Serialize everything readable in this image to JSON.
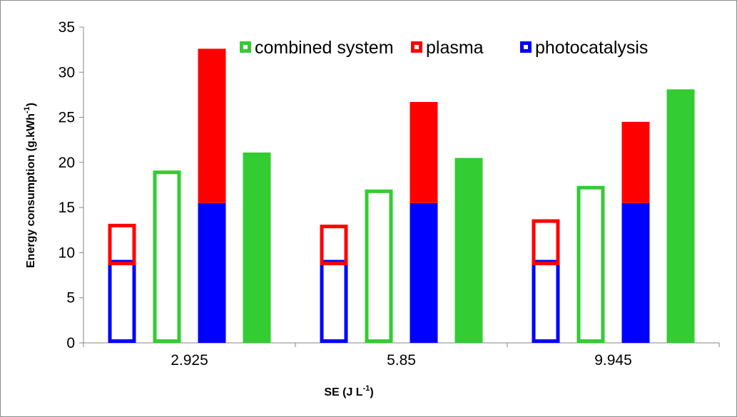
{
  "chart_data": {
    "type": "bar",
    "title": "",
    "xlabel": "SE (J L",
    "xlabel_sup": "-1",
    "xlabel_end": ")",
    "ylabel": "Energy consumption  (g.kWh",
    "ylabel_sup": "-1",
    "ylabel_end": ")",
    "ylim": [
      0,
      35
    ],
    "yticks": [
      0,
      5,
      10,
      15,
      20,
      25,
      30,
      35
    ],
    "categories": [
      "2.925",
      "5.85",
      "9.945"
    ],
    "legend": {
      "position": "top-right",
      "entries": [
        {
          "name": "combined system",
          "color": "#33cc33"
        },
        {
          "name": "plasma",
          "color": "#ff0000"
        },
        {
          "name": "photocatalysis",
          "color": "#0000ff"
        }
      ]
    },
    "groups": [
      {
        "category": "2.925",
        "bars": [
          {
            "style": "outline",
            "segments": [
              {
                "series": "photocatalysis",
                "value": 9
              },
              {
                "series": "plasma",
                "value": 4.2
              }
            ]
          },
          {
            "style": "outline",
            "segments": [
              {
                "series": "combined system",
                "value": 19.1
              }
            ]
          },
          {
            "style": "filled",
            "segments": [
              {
                "series": "photocatalysis",
                "value": 15.5
              },
              {
                "series": "plasma",
                "value": 17.1
              }
            ]
          },
          {
            "style": "filled",
            "segments": [
              {
                "series": "combined system",
                "value": 21.1
              }
            ]
          }
        ]
      },
      {
        "category": "5.85",
        "bars": [
          {
            "style": "outline",
            "segments": [
              {
                "series": "photocatalysis",
                "value": 9
              },
              {
                "series": "plasma",
                "value": 4.1
              }
            ]
          },
          {
            "style": "outline",
            "segments": [
              {
                "series": "combined system",
                "value": 17
              }
            ]
          },
          {
            "style": "filled",
            "segments": [
              {
                "series": "photocatalysis",
                "value": 15.5
              },
              {
                "series": "plasma",
                "value": 11.2
              }
            ]
          },
          {
            "style": "filled",
            "segments": [
              {
                "series": "combined system",
                "value": 20.5
              }
            ]
          }
        ]
      },
      {
        "category": "9.945",
        "bars": [
          {
            "style": "outline",
            "segments": [
              {
                "series": "photocatalysis",
                "value": 9
              },
              {
                "series": "plasma",
                "value": 4.7
              }
            ]
          },
          {
            "style": "outline",
            "segments": [
              {
                "series": "combined system",
                "value": 17.4
              }
            ]
          },
          {
            "style": "filled",
            "segments": [
              {
                "series": "photocatalysis",
                "value": 15.5
              },
              {
                "series": "plasma",
                "value": 9
              }
            ]
          },
          {
            "style": "filled",
            "segments": [
              {
                "series": "combined system",
                "value": 28.1
              }
            ]
          }
        ]
      }
    ],
    "grid": false
  }
}
